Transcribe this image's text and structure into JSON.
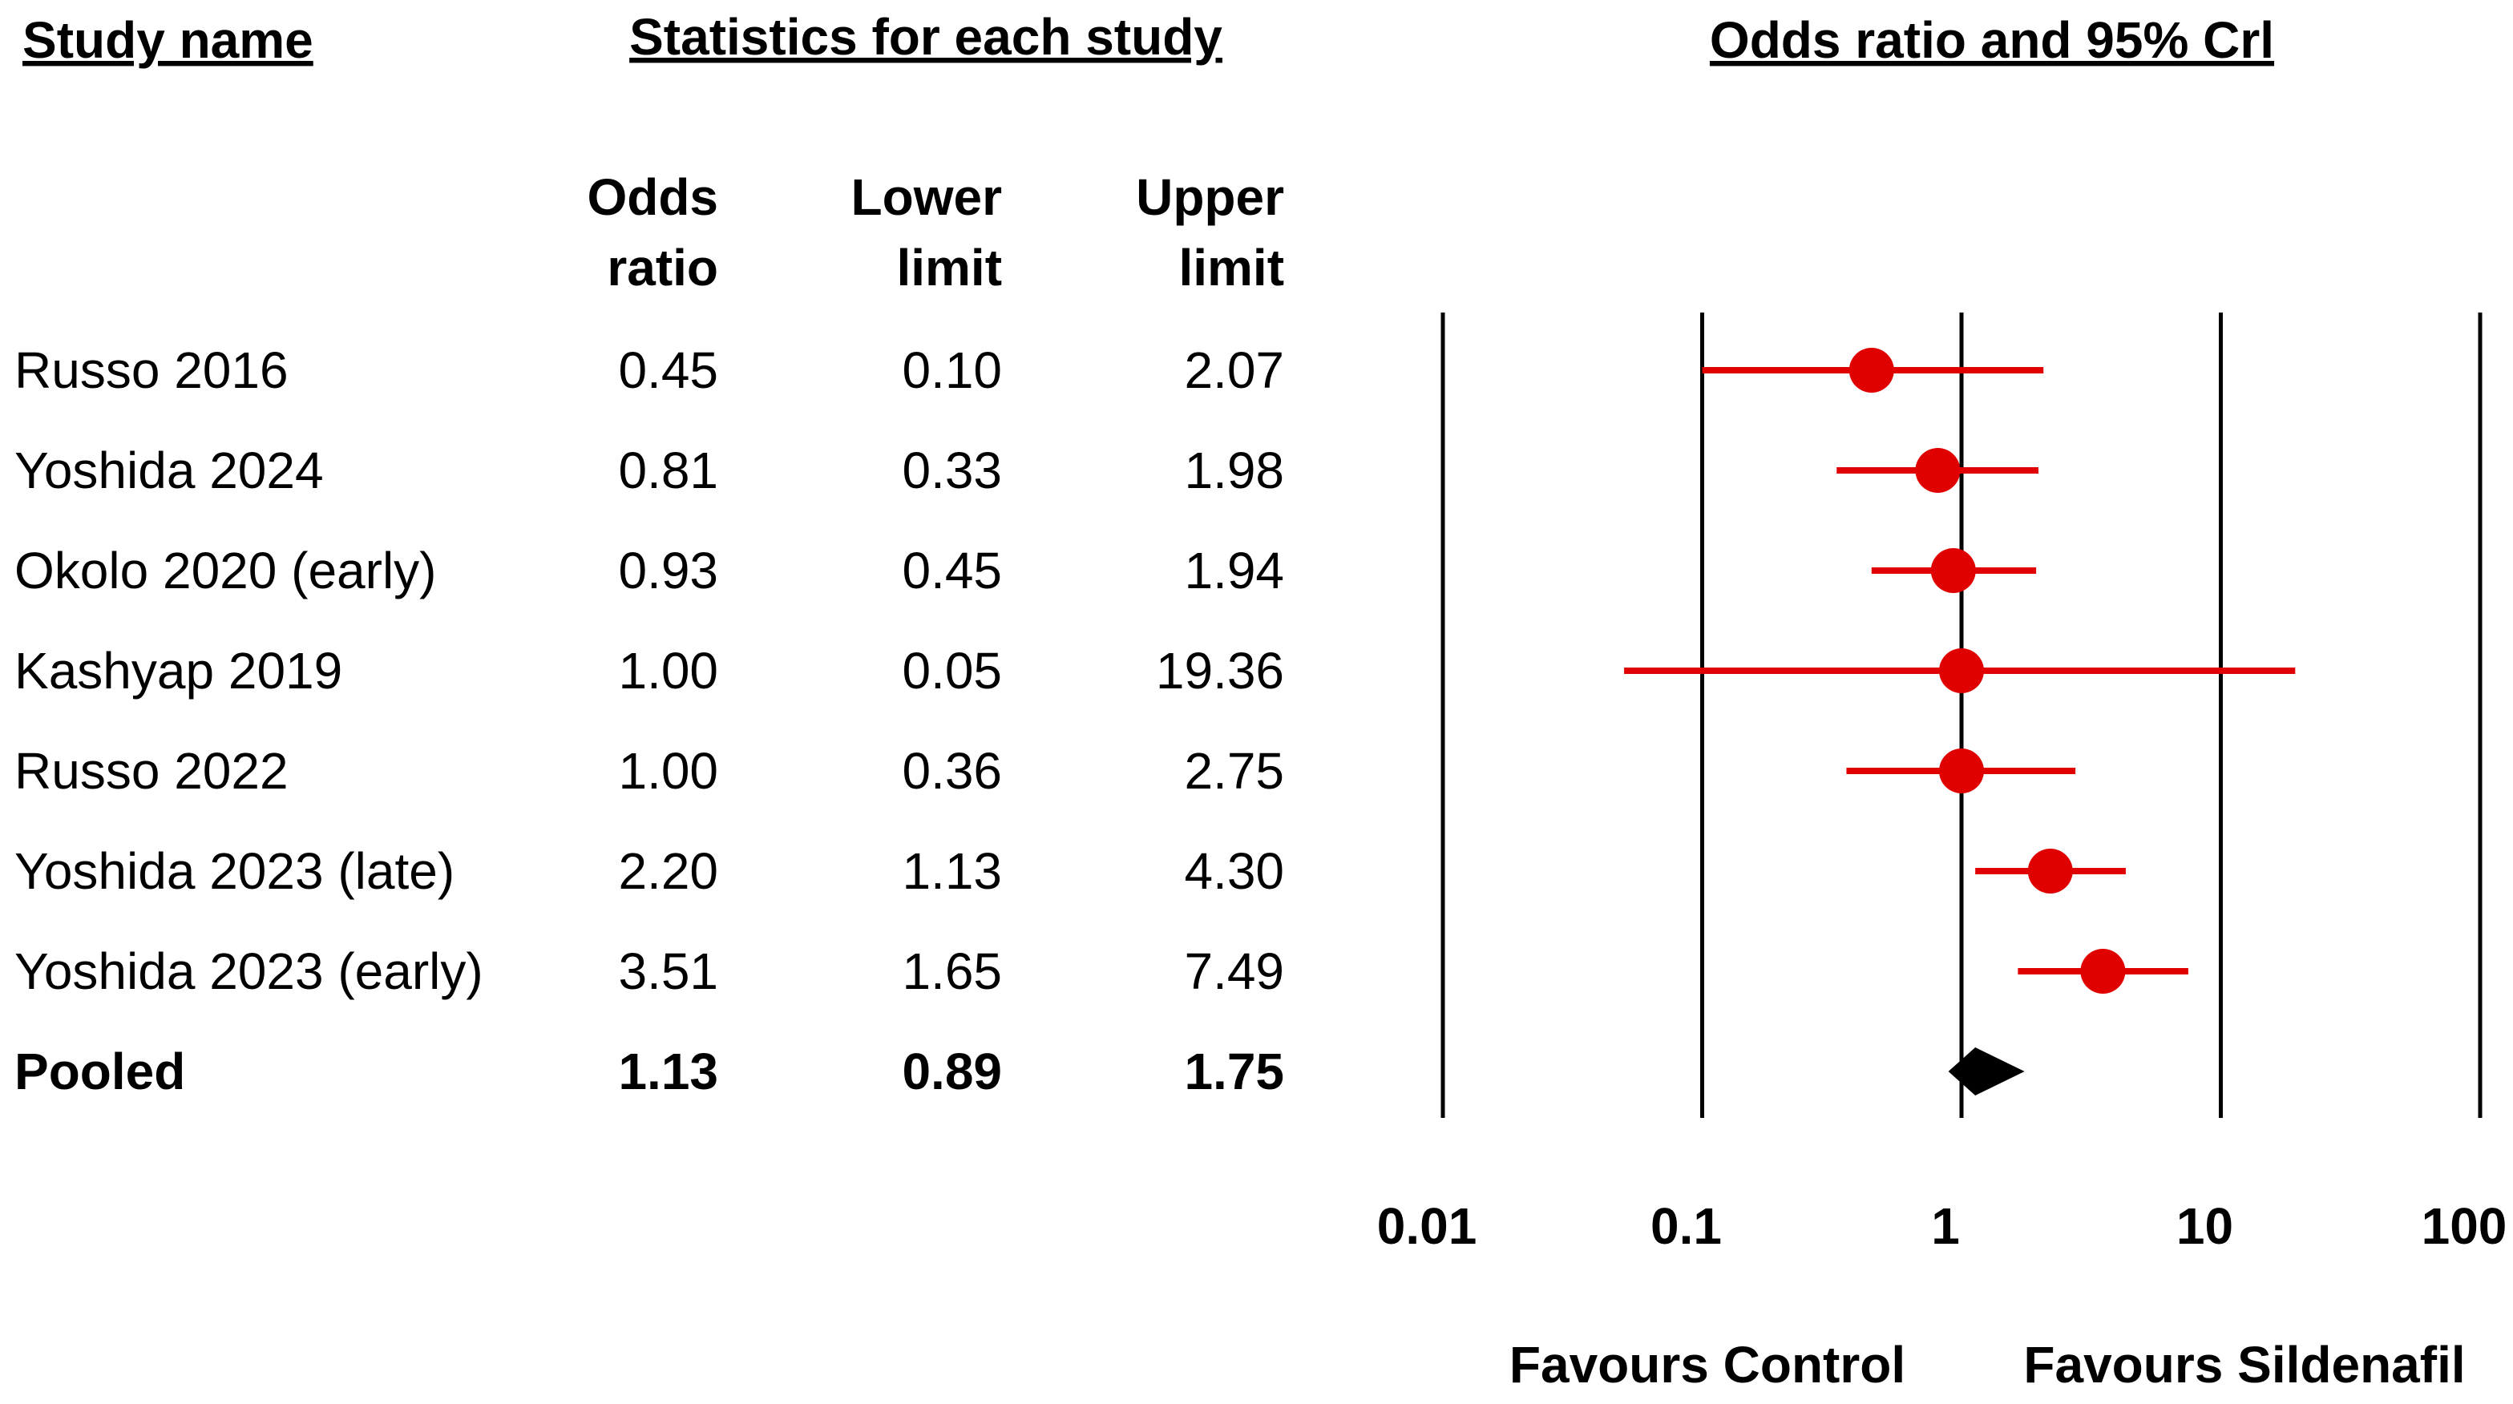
{
  "chart_data": {
    "type": "forest",
    "title": "Odds ratio and 95% Crl",
    "study_header": "Study name",
    "stats_header": "Statistics for each study",
    "column_headers": [
      [
        "Odds",
        "ratio"
      ],
      [
        "Lower",
        "limit"
      ],
      [
        "Upper",
        "limit"
      ]
    ],
    "categories": [
      "Russo 2016",
      "Yoshida 2024",
      "Okolo 2020 (early)",
      "Kashyap 2019",
      "Russo 2022",
      "Yoshida 2023 (late)",
      "Yoshida 2023 (early)",
      "Pooled"
    ],
    "values": [
      0.45,
      0.81,
      0.93,
      1.0,
      1.0,
      2.2,
      3.51,
      1.13
    ],
    "value_labels": [
      "0.45",
      "0.81",
      "0.93",
      "1.00",
      "1.00",
      "2.20",
      "3.51",
      "1.13"
    ],
    "lower": [
      0.1,
      0.33,
      0.45,
      0.05,
      0.36,
      1.13,
      1.65,
      0.89
    ],
    "lower_labels": [
      "0.10",
      "0.33",
      "0.45",
      "0.05",
      "0.36",
      "1.13",
      "1.65",
      "0.89"
    ],
    "upper": [
      2.07,
      1.98,
      1.94,
      19.36,
      2.75,
      4.3,
      7.49,
      1.75
    ],
    "upper_labels": [
      "2.07",
      "1.98",
      "1.94",
      "19.36",
      "2.75",
      "4.30",
      "7.49",
      "1.75"
    ],
    "xlim": [
      0.01,
      100
    ],
    "xticks": [
      0.01,
      0.1,
      1,
      10,
      100
    ],
    "log_x": true,
    "grid": true,
    "color": "#e00000",
    "summary_color": "#000000",
    "left_label": "Favours Control",
    "right_label": "Favours Sildenafil"
  }
}
